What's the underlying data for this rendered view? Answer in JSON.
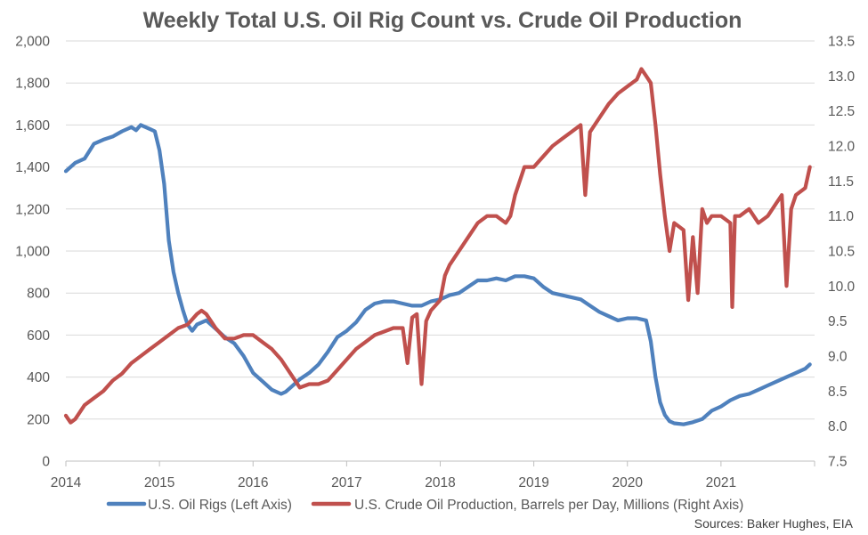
{
  "chart_data": {
    "type": "line",
    "title": "Weekly Total U.S. Oil Rig Count vs. Crude Oil Production",
    "source": "Sources: Baker Hughes, EIA",
    "x_ticks": [
      "2014",
      "2015",
      "2016",
      "2017",
      "2018",
      "2019",
      "2020",
      "2021"
    ],
    "y_left": {
      "min": 0,
      "max": 2000,
      "ticks": [
        "0",
        "200",
        "400",
        "600",
        "800",
        "1,000",
        "1,200",
        "1,400",
        "1,600",
        "1,800",
        "2,000"
      ]
    },
    "y_right": {
      "min": 7.5,
      "max": 13.5,
      "ticks": [
        "7.5",
        "8.0",
        "8.5",
        "9.0",
        "9.5",
        "10.0",
        "10.5",
        "11.0",
        "11.5",
        "12.0",
        "12.5",
        "13.0",
        "13.5"
      ]
    },
    "grid": true,
    "legend_position": "bottom",
    "series": [
      {
        "name": "U.S. Oil Rigs (Left Axis)",
        "axis": "left",
        "color": "#4f81bd",
        "x": [
          2014.0,
          2014.1,
          2014.2,
          2014.3,
          2014.4,
          2014.5,
          2014.6,
          2014.7,
          2014.75,
          2014.8,
          2014.9,
          2014.95,
          2015.0,
          2015.05,
          2015.1,
          2015.15,
          2015.2,
          2015.25,
          2015.3,
          2015.35,
          2015.4,
          2015.5,
          2015.6,
          2015.7,
          2015.8,
          2015.9,
          2016.0,
          2016.1,
          2016.2,
          2016.3,
          2016.35,
          2016.4,
          2016.5,
          2016.6,
          2016.7,
          2016.8,
          2016.9,
          2017.0,
          2017.1,
          2017.2,
          2017.3,
          2017.4,
          2017.5,
          2017.6,
          2017.7,
          2017.8,
          2017.9,
          2018.0,
          2018.1,
          2018.2,
          2018.3,
          2018.4,
          2018.5,
          2018.6,
          2018.7,
          2018.8,
          2018.9,
          2019.0,
          2019.1,
          2019.2,
          2019.3,
          2019.4,
          2019.5,
          2019.6,
          2019.7,
          2019.8,
          2019.9,
          2020.0,
          2020.1,
          2020.2,
          2020.25,
          2020.3,
          2020.35,
          2020.4,
          2020.45,
          2020.5,
          2020.6,
          2020.7,
          2020.8,
          2020.9,
          2021.0,
          2021.1,
          2021.2,
          2021.3,
          2021.4,
          2021.5,
          2021.6,
          2021.7,
          2021.8,
          2021.9,
          2021.95
        ],
        "values": [
          1380,
          1420,
          1440,
          1510,
          1530,
          1545,
          1570,
          1590,
          1575,
          1600,
          1580,
          1570,
          1480,
          1320,
          1050,
          900,
          800,
          720,
          650,
          620,
          650,
          670,
          630,
          590,
          560,
          500,
          420,
          380,
          340,
          320,
          330,
          350,
          390,
          420,
          460,
          520,
          590,
          620,
          660,
          720,
          750,
          760,
          760,
          750,
          740,
          740,
          760,
          770,
          790,
          800,
          830,
          860,
          860,
          870,
          860,
          880,
          880,
          870,
          830,
          800,
          790,
          780,
          770,
          740,
          710,
          690,
          670,
          680,
          680,
          670,
          570,
          400,
          280,
          220,
          190,
          180,
          175,
          185,
          200,
          240,
          260,
          290,
          310,
          320,
          340,
          360,
          380,
          400,
          420,
          440,
          460
        ]
      },
      {
        "name": "U.S. Crude Oil Production, Barrels per Day, Millions (Right Axis)",
        "axis": "right",
        "color": "#c0504d",
        "x": [
          2014.0,
          2014.05,
          2014.1,
          2014.2,
          2014.3,
          2014.4,
          2014.5,
          2014.6,
          2014.7,
          2014.8,
          2014.9,
          2015.0,
          2015.1,
          2015.2,
          2015.3,
          2015.4,
          2015.45,
          2015.5,
          2015.6,
          2015.7,
          2015.8,
          2015.9,
          2016.0,
          2016.1,
          2016.2,
          2016.3,
          2016.4,
          2016.5,
          2016.6,
          2016.7,
          2016.8,
          2016.9,
          2017.0,
          2017.1,
          2017.2,
          2017.3,
          2017.4,
          2017.5,
          2017.6,
          2017.65,
          2017.7,
          2017.75,
          2017.8,
          2017.85,
          2017.9,
          2018.0,
          2018.05,
          2018.1,
          2018.2,
          2018.3,
          2018.4,
          2018.5,
          2018.6,
          2018.7,
          2018.75,
          2018.8,
          2018.9,
          2019.0,
          2019.1,
          2019.2,
          2019.3,
          2019.4,
          2019.5,
          2019.55,
          2019.6,
          2019.7,
          2019.8,
          2019.9,
          2020.0,
          2020.1,
          2020.15,
          2020.2,
          2020.25,
          2020.3,
          2020.35,
          2020.4,
          2020.45,
          2020.5,
          2020.6,
          2020.65,
          2020.7,
          2020.75,
          2020.8,
          2020.85,
          2020.9,
          2021.0,
          2021.1,
          2021.12,
          2021.15,
          2021.2,
          2021.3,
          2021.4,
          2021.5,
          2021.6,
          2021.65,
          2021.7,
          2021.75,
          2021.8,
          2021.9,
          2021.95
        ],
        "values": [
          8.15,
          8.05,
          8.1,
          8.3,
          8.4,
          8.5,
          8.65,
          8.75,
          8.9,
          9.0,
          9.1,
          9.2,
          9.3,
          9.4,
          9.45,
          9.6,
          9.65,
          9.6,
          9.4,
          9.25,
          9.25,
          9.3,
          9.3,
          9.2,
          9.1,
          8.95,
          8.75,
          8.55,
          8.6,
          8.6,
          8.65,
          8.8,
          8.95,
          9.1,
          9.2,
          9.3,
          9.35,
          9.4,
          9.4,
          8.9,
          9.55,
          9.6,
          8.6,
          9.5,
          9.65,
          9.8,
          10.15,
          10.3,
          10.5,
          10.7,
          10.9,
          11.0,
          11.0,
          10.9,
          11.0,
          11.3,
          11.7,
          11.7,
          11.85,
          12.0,
          12.1,
          12.2,
          12.3,
          11.3,
          12.2,
          12.4,
          12.6,
          12.75,
          12.85,
          12.95,
          13.1,
          13.0,
          12.9,
          12.3,
          11.6,
          11.0,
          10.5,
          10.9,
          10.8,
          9.8,
          10.7,
          9.9,
          11.1,
          10.9,
          11.0,
          11.0,
          10.9,
          9.7,
          11.0,
          11.0,
          11.1,
          10.9,
          11.0,
          11.2,
          11.3,
          10.0,
          11.1,
          11.3,
          11.4,
          11.7
        ]
      }
    ]
  }
}
